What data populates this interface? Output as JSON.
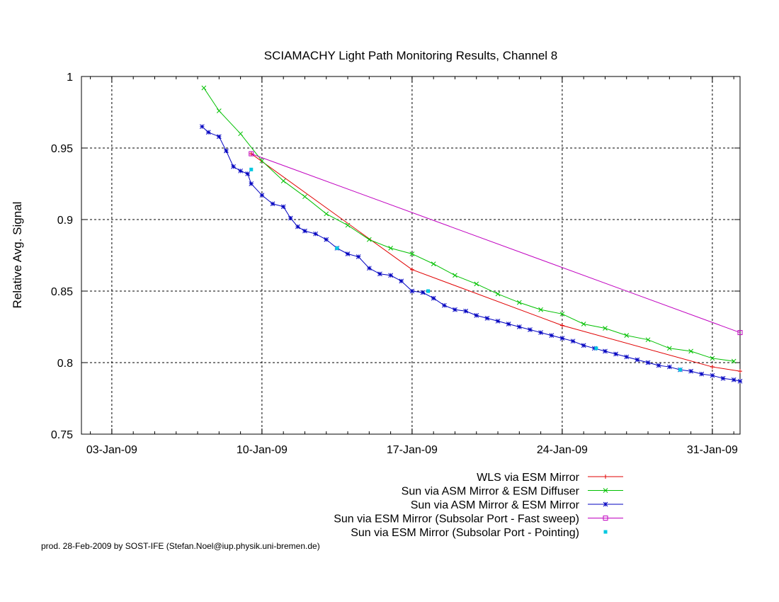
{
  "chart_data": {
    "type": "line",
    "title": "SCIAMACHY Light Path Monitoring Results, Channel 8",
    "xlabel": "",
    "ylabel": "Relative Avg. Signal",
    "x_unit": "date",
    "xlim": [
      "2009-01-01T14:00",
      "2009-02-01T07:00"
    ],
    "ylim": [
      0.75,
      1.0
    ],
    "y_ticks": [
      0.75,
      0.8,
      0.85,
      0.9,
      0.95,
      1.0
    ],
    "y_tick_labels": [
      "0.75",
      "0.8",
      "0.85",
      "0.9",
      "0.95",
      "1"
    ],
    "x_ticks": [
      "2009-01-03",
      "2009-01-10",
      "2009-01-17",
      "2009-01-24",
      "2009-01-31"
    ],
    "x_tick_labels": [
      "03-Jan-09",
      "10-Jan-09",
      "17-Jan-09",
      "24-Jan-09",
      "31-Jan-09"
    ],
    "grid": true,
    "legend_position": "bottom-right",
    "series": [
      {
        "name": "WLS via ESM Mirror",
        "color": "#e00000",
        "marker": "plus",
        "points": [
          [
            "2009-01-09T12:00",
            0.946
          ],
          [
            "2009-01-17T00:00",
            0.865
          ],
          [
            "2009-01-24T00:00",
            0.826
          ],
          [
            "2009-01-31T00:00",
            0.797
          ],
          [
            "2009-02-01T07:00",
            0.794
          ]
        ]
      },
      {
        "name": "Sun via ASM Mirror & ESM Diffuser",
        "color": "#00c000",
        "marker": "x",
        "points": [
          [
            "2009-01-07T07:00",
            0.992
          ],
          [
            "2009-01-08T00:00",
            0.976
          ],
          [
            "2009-01-09T00:00",
            0.96
          ],
          [
            "2009-01-10T00:00",
            0.941
          ],
          [
            "2009-01-11T00:00",
            0.927
          ],
          [
            "2009-01-12T00:00",
            0.916
          ],
          [
            "2009-01-13T00:00",
            0.904
          ],
          [
            "2009-01-14T00:00",
            0.896
          ],
          [
            "2009-01-15T00:00",
            0.886
          ],
          [
            "2009-01-16T00:00",
            0.88
          ],
          [
            "2009-01-17T00:00",
            0.876
          ],
          [
            "2009-01-18T00:00",
            0.869
          ],
          [
            "2009-01-19T00:00",
            0.861
          ],
          [
            "2009-01-20T00:00",
            0.855
          ],
          [
            "2009-01-21T00:00",
            0.848
          ],
          [
            "2009-01-22T00:00",
            0.842
          ],
          [
            "2009-01-23T00:00",
            0.837
          ],
          [
            "2009-01-24T00:00",
            0.834
          ],
          [
            "2009-01-25T00:00",
            0.827
          ],
          [
            "2009-01-26T00:00",
            0.824
          ],
          [
            "2009-01-27T00:00",
            0.819
          ],
          [
            "2009-01-28T00:00",
            0.816
          ],
          [
            "2009-01-29T00:00",
            0.81
          ],
          [
            "2009-01-30T00:00",
            0.808
          ],
          [
            "2009-01-31T00:00",
            0.803
          ],
          [
            "2009-02-01T00:00",
            0.801
          ]
        ]
      },
      {
        "name": "Sun via ASM Mirror & ESM Mirror",
        "color": "#0000c0",
        "marker": "star",
        "points": [
          [
            "2009-01-07T05:00",
            0.965
          ],
          [
            "2009-01-07T12:00",
            0.961
          ],
          [
            "2009-01-08T00:00",
            0.958
          ],
          [
            "2009-01-08T08:00",
            0.948
          ],
          [
            "2009-01-08T16:00",
            0.937
          ],
          [
            "2009-01-09T00:00",
            0.934
          ],
          [
            "2009-01-09T08:00",
            0.932
          ],
          [
            "2009-01-09T12:00",
            0.925
          ],
          [
            "2009-01-10T00:00",
            0.917
          ],
          [
            "2009-01-10T12:00",
            0.911
          ],
          [
            "2009-01-11T00:00",
            0.909
          ],
          [
            "2009-01-11T08:00",
            0.901
          ],
          [
            "2009-01-11T16:00",
            0.895
          ],
          [
            "2009-01-12T00:00",
            0.892
          ],
          [
            "2009-01-12T12:00",
            0.89
          ],
          [
            "2009-01-13T00:00",
            0.886
          ],
          [
            "2009-01-13T12:00",
            0.88
          ],
          [
            "2009-01-14T00:00",
            0.876
          ],
          [
            "2009-01-14T12:00",
            0.874
          ],
          [
            "2009-01-15T00:00",
            0.866
          ],
          [
            "2009-01-15T12:00",
            0.862
          ],
          [
            "2009-01-16T00:00",
            0.861
          ],
          [
            "2009-01-16T12:00",
            0.857
          ],
          [
            "2009-01-17T00:00",
            0.85
          ],
          [
            "2009-01-17T12:00",
            0.849
          ],
          [
            "2009-01-18T00:00",
            0.845
          ],
          [
            "2009-01-18T12:00",
            0.84
          ],
          [
            "2009-01-19T00:00",
            0.837
          ],
          [
            "2009-01-19T12:00",
            0.836
          ],
          [
            "2009-01-20T00:00",
            0.833
          ],
          [
            "2009-01-20T12:00",
            0.831
          ],
          [
            "2009-01-21T00:00",
            0.829
          ],
          [
            "2009-01-21T12:00",
            0.827
          ],
          [
            "2009-01-22T00:00",
            0.825
          ],
          [
            "2009-01-22T12:00",
            0.823
          ],
          [
            "2009-01-23T00:00",
            0.821
          ],
          [
            "2009-01-23T12:00",
            0.819
          ],
          [
            "2009-01-24T00:00",
            0.817
          ],
          [
            "2009-01-24T12:00",
            0.815
          ],
          [
            "2009-01-25T00:00",
            0.812
          ],
          [
            "2009-01-25T12:00",
            0.81
          ],
          [
            "2009-01-26T00:00",
            0.808
          ],
          [
            "2009-01-26T12:00",
            0.806
          ],
          [
            "2009-01-27T00:00",
            0.804
          ],
          [
            "2009-01-27T12:00",
            0.802
          ],
          [
            "2009-01-28T00:00",
            0.8
          ],
          [
            "2009-01-28T12:00",
            0.798
          ],
          [
            "2009-01-29T00:00",
            0.797
          ],
          [
            "2009-01-29T12:00",
            0.795
          ],
          [
            "2009-01-30T00:00",
            0.794
          ],
          [
            "2009-01-30T12:00",
            0.792
          ],
          [
            "2009-01-31T00:00",
            0.791
          ],
          [
            "2009-01-31T12:00",
            0.789
          ],
          [
            "2009-02-01T00:00",
            0.788
          ],
          [
            "2009-02-01T07:00",
            0.787
          ]
        ]
      },
      {
        "name": "Sun via ESM Mirror (Subsolar Port - Fast sweep)",
        "color": "#c000c0",
        "marker": "square",
        "points": [
          [
            "2009-01-09T12:00",
            0.946
          ],
          [
            "2009-02-01T07:00",
            0.821
          ]
        ]
      },
      {
        "name": "Sun via ESM Mirror (Subsolar Port - Pointing)",
        "color": "#00c8e0",
        "marker": "dot",
        "points": [
          [
            "2009-01-09T12:00",
            0.935
          ],
          [
            "2009-01-13T12:00",
            0.88
          ],
          [
            "2009-01-17T18:00",
            0.85
          ],
          [
            "2009-01-25T14:00",
            0.81
          ],
          [
            "2009-01-29T12:00",
            0.795
          ]
        ]
      }
    ]
  },
  "footer": {
    "credit": "prod. 28-Feb-2009 by SOST-IFE (Stefan.Noel@iup.physik.uni-bremen.de)"
  }
}
